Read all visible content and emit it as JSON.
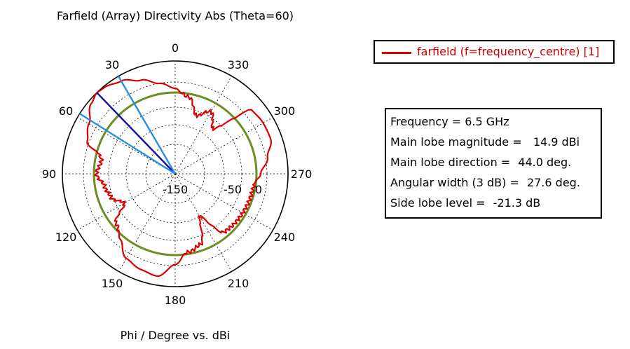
{
  "chart_data": {
    "type": "polar",
    "title": "Farfield (Array) Directivity Abs (Theta=60)",
    "xlabel": "Phi / Degree vs. dBi",
    "angle_ticks": [
      "0",
      "30",
      "60",
      "90",
      "120",
      "150",
      "180",
      "210",
      "240",
      "270",
      "300",
      "330"
    ],
    "radial_tick_labels": [
      "-150",
      "-50",
      "0"
    ],
    "radial_range_dbi": [
      -150,
      15
    ],
    "reference_circle_dbi": 0,
    "series": [
      {
        "name": "farfield (f=frequency_centre) [1]",
        "color": "#dd0000",
        "phi": [
          0,
          10,
          20,
          30,
          40,
          44,
          50,
          60,
          70,
          80,
          90,
          100,
          110,
          120,
          130,
          140,
          150,
          160,
          170,
          180,
          190,
          200,
          210,
          220,
          230,
          240,
          250,
          260,
          270,
          280,
          290,
          300,
          310,
          320,
          330,
          340,
          350
        ],
        "dbi": [
          2,
          5,
          9,
          12.5,
          14.5,
          14.9,
          13.5,
          9,
          6,
          -10,
          -4,
          -15,
          -20,
          -35,
          -6,
          2,
          8,
          10,
          11,
          4.5,
          -3,
          -10,
          -50,
          -8,
          -6,
          -5,
          -4,
          -3,
          2,
          6,
          10,
          10,
          9,
          -35,
          -15,
          -30,
          -5
        ]
      }
    ],
    "markers": [
      {
        "name": "main-lobe-direction",
        "phi": 44.0,
        "color": "#10109a"
      },
      {
        "name": "beamwidth-edge-1",
        "phi": 30.2,
        "color": "#2a8fe0"
      },
      {
        "name": "beamwidth-edge-2",
        "phi": 57.8,
        "color": "#2a8fe0"
      }
    ],
    "colors": {
      "reference": "#6b8e23",
      "grid": "#000000"
    }
  },
  "legend": {
    "label": "farfield (f=frequency_centre) [1]"
  },
  "info": {
    "frequency": "Frequency = 6.5 GHz",
    "mag_label": "Main lobe magnitude =",
    "mag_value": "  14.9 dBi",
    "dir_label": "Main lobe direction =",
    "dir_value": " 44.0 deg.",
    "width_label": "Angular width (3 dB) =",
    "width_value": " 27.6 deg.",
    "side_label": "Side lobe level =",
    "side_value": " -21.3 dB"
  }
}
